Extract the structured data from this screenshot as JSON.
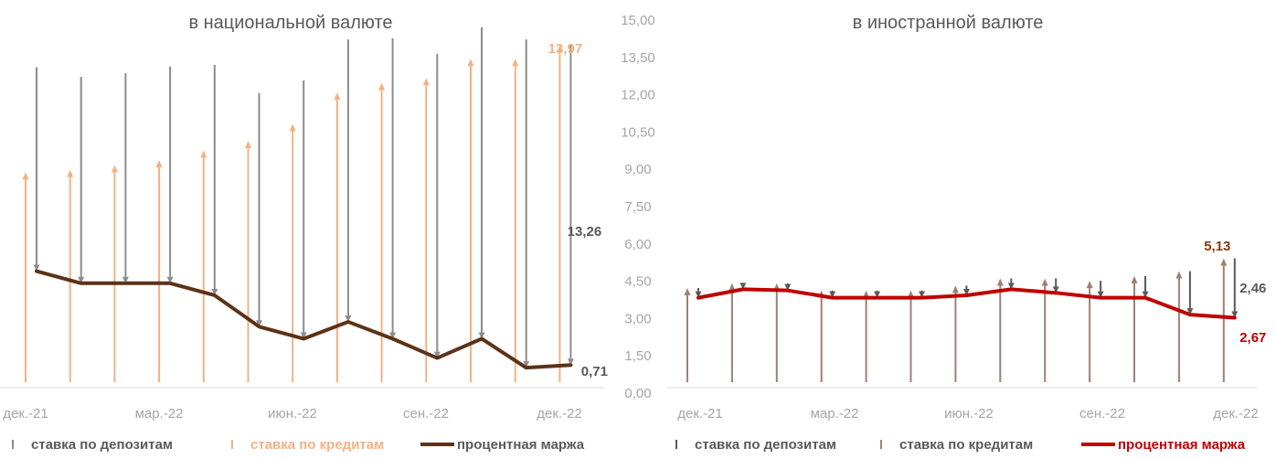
{
  "chart_data": [
    {
      "type": "line",
      "title": "в национальной валюте",
      "x": [
        "дек.-21",
        "янв.-22",
        "фев.-22",
        "мар.-22",
        "апр.-22",
        "май.-22",
        "июн.-22",
        "июл.-22",
        "авг.-22",
        "сен.-22",
        "окт.-22",
        "ноя.-22",
        "дек.-22"
      ],
      "x_tick_labels": [
        "дек.-21",
        "мар.-22",
        "июн.-22",
        "сен.-22",
        "дек.-22"
      ],
      "series": [
        {
          "name": "ставка по депозитам",
          "style": "down-arrow",
          "color": "#8c8c8c",
          "values": [
            8.45,
            8.55,
            8.7,
            8.98,
            9.55,
            9.68,
            10.7,
            11.7,
            12.45,
            12.6,
            12.9,
            13.6,
            13.26
          ]
        },
        {
          "name": "ставка по кредитам",
          "style": "up-arrow",
          "color": "#f4b183",
          "values": [
            8.7,
            8.8,
            9.0,
            9.2,
            9.6,
            10.0,
            10.7,
            12.0,
            12.4,
            12.6,
            13.4,
            13.4,
            13.97
          ]
        },
        {
          "name": "процентная маржа",
          "style": "line",
          "color": "#5c3317",
          "values": [
            4.6,
            4.1,
            4.1,
            4.1,
            3.6,
            2.3,
            1.8,
            2.5,
            1.8,
            1.0,
            1.8,
            0.6,
            0.71
          ]
        }
      ],
      "annotations": [
        {
          "text": "13,97",
          "series": "ставка по кредитам",
          "color": "#f4b183"
        },
        {
          "text": "13,26",
          "series": "ставка по депозитам",
          "color": "#595959"
        },
        {
          "text": "0,71",
          "series": "процентная маржа",
          "color": "#595959"
        }
      ],
      "ylim": [
        0,
        15
      ],
      "legend_position": "bottom"
    },
    {
      "type": "line",
      "title": "в иностранной валюте",
      "x": [
        "дек.-21",
        "янв.-22",
        "фев.-22",
        "мар.-22",
        "апр.-22",
        "май.-22",
        "июн.-22",
        "июл.-22",
        "авг.-22",
        "сен.-22",
        "окт.-22",
        "ноя.-22",
        "дек.-22"
      ],
      "x_tick_labels": [
        "дек.-21",
        "мар.-22",
        "июн.-22",
        "сен.-22",
        "дек.-22"
      ],
      "y_tick_labels": [
        "0,00",
        "1,50",
        "3,00",
        "4,50",
        "6,00",
        "7,50",
        "9,00",
        "10,50",
        "12,00",
        "13,50",
        "15,00"
      ],
      "series": [
        {
          "name": "ставка по депозитам",
          "style": "down-arrow",
          "color": "#595959",
          "values": [
            0.4,
            0.25,
            0.3,
            0.3,
            0.3,
            0.3,
            0.4,
            0.45,
            0.6,
            0.7,
            0.9,
            1.8,
            2.46
          ]
        },
        {
          "name": "ставка по кредитам",
          "style": "up-arrow",
          "color": "#a08070",
          "values": [
            3.9,
            4.1,
            4.1,
            3.8,
            3.8,
            3.8,
            4.0,
            4.3,
            4.3,
            4.2,
            4.4,
            4.6,
            5.13
          ]
        },
        {
          "name": "процентная маржа",
          "style": "line",
          "color": "#c00000",
          "values": [
            3.5,
            3.85,
            3.8,
            3.5,
            3.5,
            3.5,
            3.6,
            3.85,
            3.7,
            3.5,
            3.5,
            2.8,
            2.67
          ]
        }
      ],
      "annotations": [
        {
          "text": "5,13",
          "series": "ставка по кредитам",
          "color": "#843c0c"
        },
        {
          "text": "2,46",
          "series": "ставка по депозитам",
          "color": "#595959"
        },
        {
          "text": "2,67",
          "series": "процентная маржа",
          "color": "#c00000"
        }
      ],
      "ylim": [
        0,
        15
      ],
      "legend_position": "bottom"
    }
  ]
}
